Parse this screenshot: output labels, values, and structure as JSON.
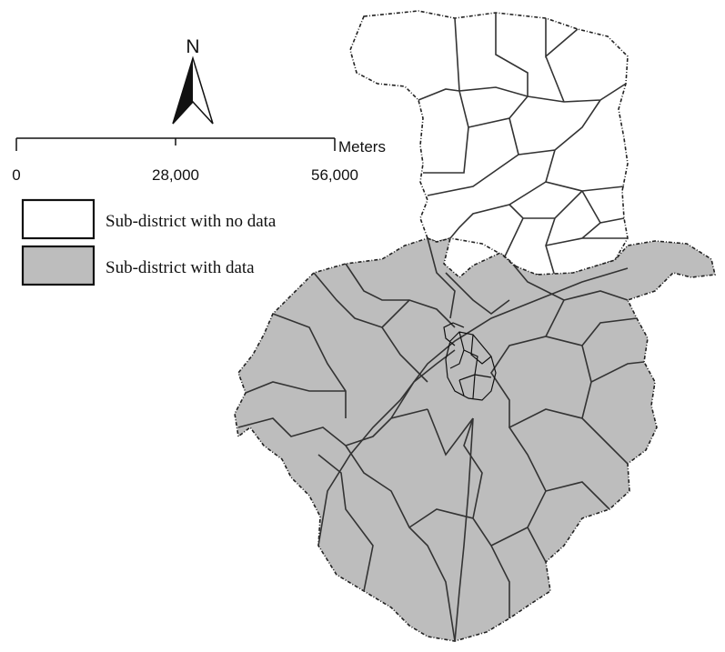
{
  "north_arrow": {
    "label": "N"
  },
  "scale_bar": {
    "unit_label": "Meters",
    "ticks": [
      "0",
      "28,000",
      "56,000"
    ]
  },
  "legend": {
    "items": [
      {
        "label": "Sub-district with no data",
        "fill": "#ffffff"
      },
      {
        "label": "Sub-district with data",
        "fill": "#bdbdbd"
      }
    ]
  },
  "colors": {
    "no_data": "#ffffff",
    "with_data": "#bdbdbd",
    "boundary": "#222222"
  }
}
